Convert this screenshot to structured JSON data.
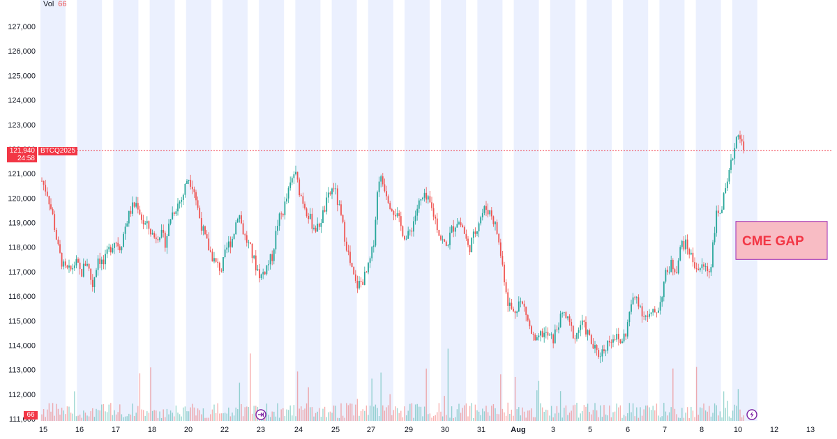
{
  "volume_legend": {
    "label": "Vol",
    "value": "66"
  },
  "price_tag": {
    "price": "121,940",
    "countdown": "24:58",
    "symbol": "BTCQ2025",
    "volume": "66"
  },
  "colors": {
    "up": "#26a69a",
    "down": "#ef5350",
    "session_band": "#ebf0fe",
    "price_line": "#f23645",
    "gap_fill": "#f8bcc4",
    "gap_border": "#9c27b0",
    "event_icon": "#7b1fa2"
  },
  "icons": {
    "event_marker_left": "arrow-into-circle-icon",
    "event_marker_right": "lightning-circle-icon"
  },
  "chart_data": {
    "type": "candlestick",
    "symbol": "BTCQ2025",
    "y_axis": {
      "ticks": [
        111000,
        112000,
        113000,
        114000,
        115000,
        116000,
        117000,
        118000,
        119000,
        120000,
        121000,
        122000,
        123000,
        124000,
        125000,
        126000,
        127000
      ],
      "tick_labels": [
        "111,000",
        "112,000",
        "113,000",
        "114,000",
        "115,000",
        "116,000",
        "117,000",
        "118,000",
        "119,000",
        "120,000",
        "121,000",
        "122,000",
        "123,000",
        "124,000",
        "125,000",
        "126,000",
        "127,000"
      ],
      "range": [
        110900,
        128000
      ]
    },
    "x_axis": {
      "ticks": [
        "15",
        "16",
        "17",
        "18",
        "20",
        "22",
        "23",
        "24",
        "25",
        "27",
        "29",
        "30",
        "31",
        "Aug",
        "3",
        "5",
        "6",
        "7",
        "8",
        "10",
        "12",
        "13"
      ],
      "bold_ticks": [
        "Aug"
      ]
    },
    "last_price": 121940,
    "annotation": {
      "text": "CME GAP",
      "price_low": 117500,
      "price_high": 119050
    },
    "price_path": [
      [
        0,
        120700
      ],
      [
        0.5,
        120200
      ],
      [
        1,
        119200
      ],
      [
        1.5,
        117800
      ],
      [
        2,
        117100
      ],
      [
        2.5,
        117000
      ],
      [
        3,
        117400
      ],
      [
        3.5,
        116900
      ],
      [
        4,
        117500
      ],
      [
        4.5,
        116400
      ],
      [
        5,
        117600
      ],
      [
        5.5,
        117300
      ],
      [
        6,
        117900
      ],
      [
        6.5,
        118300
      ],
      [
        7,
        118000
      ],
      [
        7.5,
        119000
      ],
      [
        8,
        119600
      ],
      [
        8.5,
        119800
      ],
      [
        9,
        119000
      ],
      [
        9.5,
        118800
      ],
      [
        10,
        118400
      ],
      [
        10.5,
        118600
      ],
      [
        11,
        118200
      ],
      [
        11.5,
        119300
      ],
      [
        12,
        119700
      ],
      [
        12.5,
        120000
      ],
      [
        13,
        120900
      ],
      [
        13.5,
        120500
      ],
      [
        14,
        119300
      ],
      [
        14.5,
        118400
      ],
      [
        15,
        117800
      ],
      [
        15.5,
        117300
      ],
      [
        16,
        117100
      ],
      [
        16.5,
        118000
      ],
      [
        17,
        118400
      ],
      [
        17.5,
        119500
      ],
      [
        18,
        118500
      ],
      [
        18.5,
        118000
      ],
      [
        19,
        117300
      ],
      [
        19.5,
        116800
      ],
      [
        20,
        117200
      ],
      [
        20.5,
        117600
      ],
      [
        21,
        119000
      ],
      [
        21.5,
        119500
      ],
      [
        22,
        120300
      ],
      [
        22.5,
        121100
      ],
      [
        23,
        120200
      ],
      [
        23.5,
        119600
      ],
      [
        24,
        119000
      ],
      [
        24.5,
        118700
      ],
      [
        25,
        119300
      ],
      [
        25.5,
        120000
      ],
      [
        26,
        120500
      ],
      [
        26.5,
        119500
      ],
      [
        27,
        118400
      ],
      [
        27.5,
        117200
      ],
      [
        28,
        116400
      ],
      [
        28.5,
        116600
      ],
      [
        29,
        117000
      ],
      [
        29.5,
        118000
      ],
      [
        30,
        120900
      ],
      [
        30.5,
        120500
      ],
      [
        31,
        119800
      ],
      [
        31.5,
        119400
      ],
      [
        32,
        118800
      ],
      [
        32.5,
        118300
      ],
      [
        33,
        118900
      ],
      [
        33.5,
        119700
      ],
      [
        34,
        120000
      ],
      [
        34.5,
        119800
      ],
      [
        35,
        119200
      ],
      [
        35.5,
        118400
      ],
      [
        36,
        118000
      ],
      [
        36.5,
        118700
      ],
      [
        37,
        119100
      ],
      [
        37.5,
        118800
      ],
      [
        38,
        117900
      ],
      [
        38.5,
        118500
      ],
      [
        39,
        119200
      ],
      [
        39.5,
        119600
      ],
      [
        40,
        119400
      ],
      [
        40.5,
        118700
      ],
      [
        41,
        117300
      ],
      [
        41.5,
        115800
      ],
      [
        42,
        115300
      ],
      [
        42.5,
        115800
      ],
      [
        43,
        115500
      ],
      [
        43.5,
        114600
      ],
      [
        44,
        114000
      ],
      [
        44.5,
        114500
      ],
      [
        45,
        114400
      ],
      [
        45.5,
        114200
      ],
      [
        46,
        114900
      ],
      [
        46.5,
        115300
      ],
      [
        47,
        114800
      ],
      [
        47.5,
        114300
      ],
      [
        48,
        114900
      ],
      [
        48.5,
        114600
      ],
      [
        49,
        114000
      ],
      [
        49.5,
        113600
      ],
      [
        50,
        113800
      ],
      [
        50.5,
        114200
      ],
      [
        51,
        114400
      ],
      [
        51.5,
        114100
      ],
      [
        52,
        114500
      ],
      [
        52.5,
        115700
      ],
      [
        53,
        116000
      ],
      [
        53.5,
        115300
      ],
      [
        54,
        115100
      ],
      [
        54.5,
        115300
      ],
      [
        55,
        115600
      ],
      [
        55.5,
        116800
      ],
      [
        56,
        117300
      ],
      [
        56.5,
        117100
      ],
      [
        57,
        118200
      ],
      [
        57.5,
        118000
      ],
      [
        58,
        117400
      ],
      [
        58.5,
        117100
      ],
      [
        59,
        117200
      ],
      [
        59.5,
        117000
      ],
      [
        60,
        119200
      ],
      [
        60.5,
        119600
      ],
      [
        61,
        120400
      ],
      [
        61.5,
        121700
      ],
      [
        62,
        122800
      ],
      [
        62.5,
        121900
      ]
    ]
  }
}
